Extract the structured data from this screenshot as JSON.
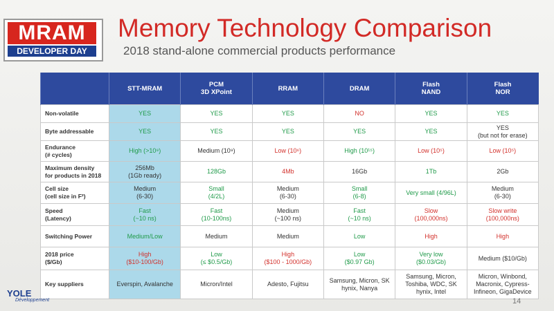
{
  "header": {
    "logo": {
      "main": "MRAM",
      "sub": "DEVELOPER DAY"
    },
    "title": "Memory Technology Comparison",
    "subtitle": "2018 stand-alone commercial products performance"
  },
  "table": {
    "columns": [
      "STT-MRAM",
      "PCM\n3D XPoint",
      "RRAM",
      "DRAM",
      "Flash\nNAND",
      "Flash\nNOR"
    ],
    "rows": [
      {
        "label": "Non-volatile",
        "cells": [
          "YES",
          "YES",
          "YES",
          "NO",
          "YES",
          "YES"
        ]
      },
      {
        "label": "Byte addressable",
        "cells": [
          "YES",
          "YES",
          "YES",
          "YES",
          "YES",
          "YES\n(but not for erase)"
        ]
      },
      {
        "label": "Endurance\n(# cycles)",
        "cells": [
          "High (>10⁹)",
          "Medium (10⁹)",
          "Low (10⁶)",
          "High (10¹⁵)",
          "Low (10⁵)",
          "Low (10⁵)"
        ]
      },
      {
        "label": "Maximum density\nfor products in 2018",
        "cells": [
          "256Mb\n(1Gb ready)",
          "128Gb",
          "4Mb",
          "16Gb",
          "1Tb",
          "2Gb"
        ]
      },
      {
        "label": "Cell size\n(cell size in F²)",
        "cells": [
          "Medium\n(6-30)",
          "Small\n(4/2L)",
          "Medium\n(6-30)",
          "Small\n(6-8)",
          "Very small (4/96L)",
          "Medium\n(6-30)"
        ]
      },
      {
        "label": "Speed\n(Latency)",
        "cells": [
          "Fast\n(~10 ns)",
          "Fast\n(10-100ns)",
          "Medium\n(~100 ns)",
          "Fast\n(~10 ns)",
          "Slow\n(100,000ns)",
          "Slow write\n(100,000ns)"
        ]
      },
      {
        "label": "Switching Power",
        "cells": [
          "Medium/Low",
          "Medium",
          "Medium",
          "Low",
          "High",
          "High"
        ]
      },
      {
        "label": "2018 price\n($/Gb)",
        "cells": [
          "High\n($10-100/Gb)",
          "Low\n(≤ $0.5/Gb)",
          "High\n($100 - 1000/Gb)",
          "Low\n($0.97 Gb)",
          "Very low\n($0.03/Gb)",
          "Medium ($10/Gb)"
        ]
      },
      {
        "label": "Key suppliers",
        "cells": [
          "Everspin, Avalanche",
          "Micron/Intel",
          "Adesto, Fujitsu",
          "Samsung, Micron, SK\nhynix, Nanya",
          "Samsung, Micron,\nToshiba, WDC, SK\nhynix, Intel",
          "Micron, Winbond,\nMacronix, Cypress-\nInfineon, GigaDevice"
        ]
      }
    ]
  },
  "footer": {
    "logo": "YOLE",
    "logo_sub": "Développement",
    "page": "14"
  }
}
